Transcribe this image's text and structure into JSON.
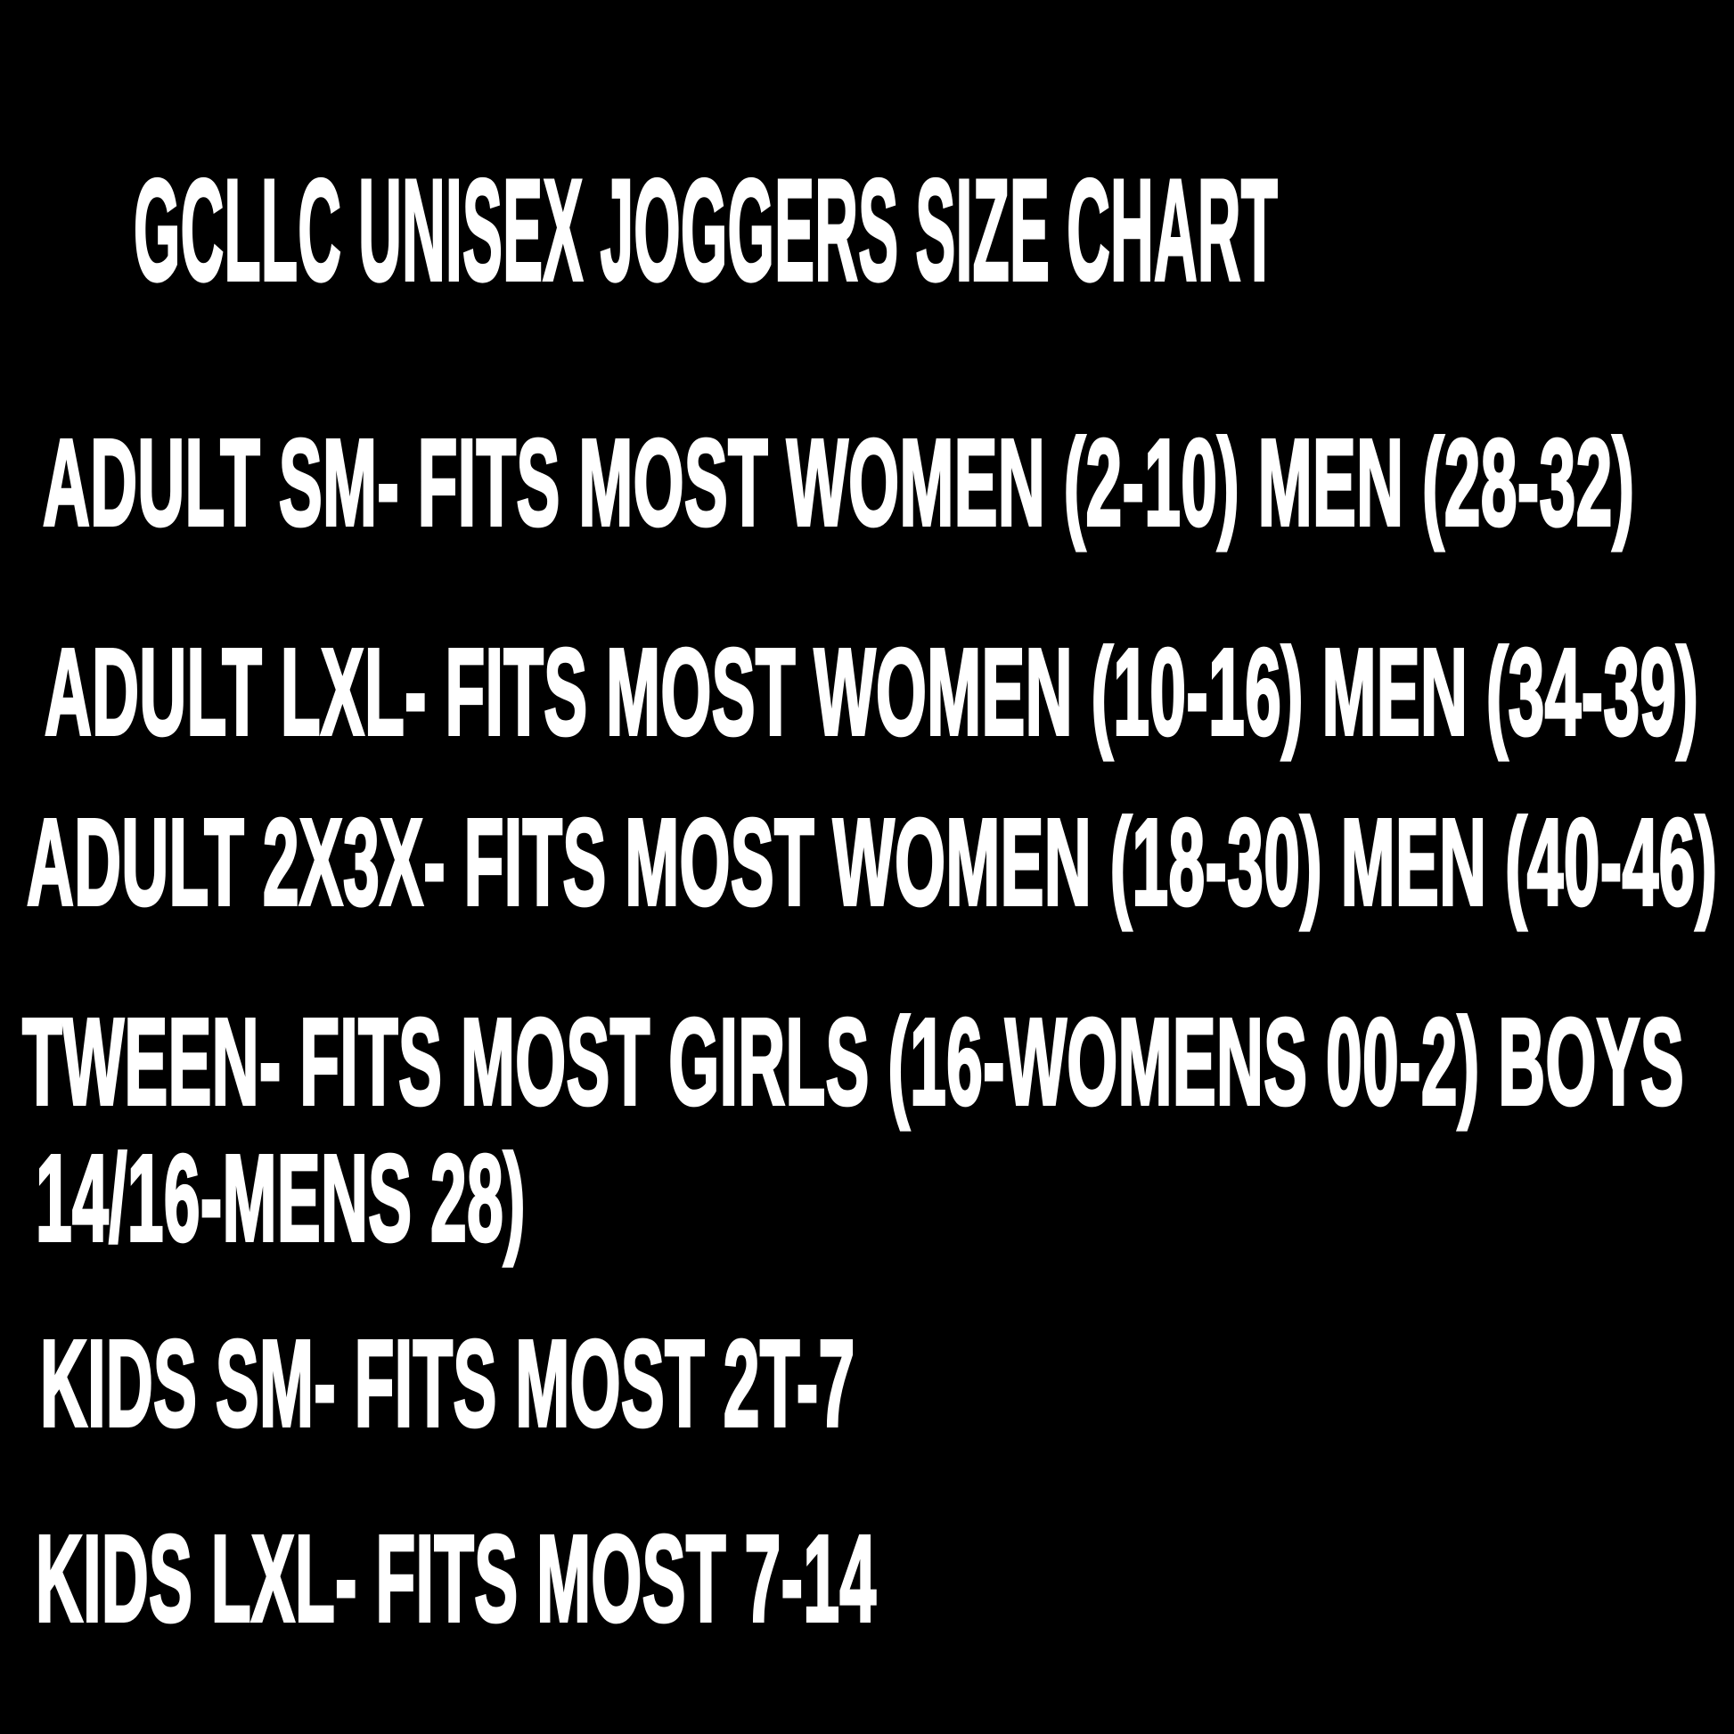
{
  "page": {
    "background_color": "#000000",
    "text_color": "#ffffff"
  },
  "title": "GCLLC UNISEX JOGGERS SIZE CHART",
  "lines": [
    "ADULT SM- FITS MOST WOMEN (2-10) MEN (28-32)",
    "ADULT LXL- FITS MOST WOMEN (10-16) MEN (34-39)",
    "ADULT 2X3X- FITS MOST WOMEN (18-30) MEN (40-46)",
    "TWEEN- FITS MOST GIRLS (16-WOMENS 00-2) BOYS",
    "14/16-MENS 28)",
    "KIDS SM- FITS MOST 2T-7",
    "KIDS LXL- FITS MOST 7-14"
  ],
  "size_entries": [
    {
      "size": "ADULT SM",
      "fits": "FITS MOST WOMEN (2-10) MEN (28-32)"
    },
    {
      "size": "ADULT LXL",
      "fits": "FITS MOST WOMEN (10-16) MEN (34-39)"
    },
    {
      "size": "ADULT 2X3X",
      "fits": "FITS MOST WOMEN (18-30) MEN (40-46)"
    },
    {
      "size": "TWEEN",
      "fits": "FITS MOST GIRLS (16-WOMENS 00-2) BOYS 14/16-MENS 28)"
    },
    {
      "size": "KIDS SM",
      "fits": "FITS MOST 2T-7"
    },
    {
      "size": "KIDS LXL",
      "fits": "FITS MOST 7-14"
    }
  ]
}
